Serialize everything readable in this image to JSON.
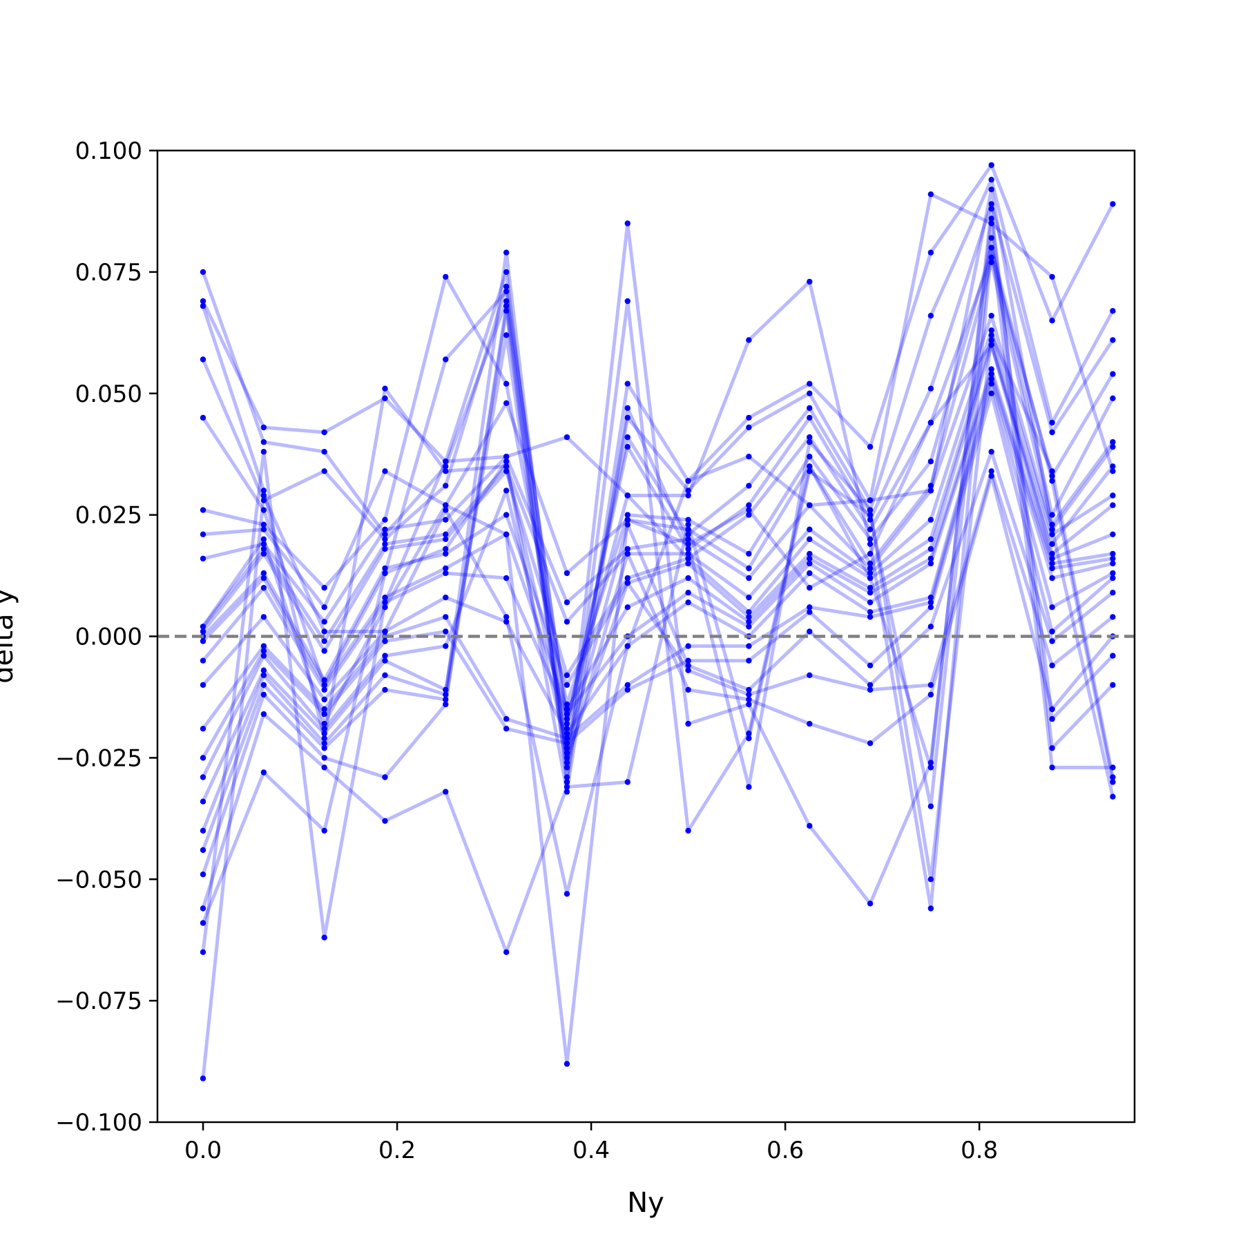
{
  "chart_data": {
    "type": "line",
    "xlabel": "Ny",
    "ylabel": "delta y",
    "xlim": [
      -0.047,
      0.96
    ],
    "ylim": [
      -0.1,
      0.1
    ],
    "grid": false,
    "line_color": "#0000ff",
    "line_opacity": 0.27,
    "reference_line": {
      "y": 0.0,
      "color": "#808080",
      "style": "dashed"
    },
    "x": [
      0.0,
      0.0625,
      0.125,
      0.1875,
      0.25,
      0.3125,
      0.375,
      0.4375,
      0.5,
      0.5625,
      0.625,
      0.6875,
      0.75,
      0.8125,
      0.875,
      0.9375
    ],
    "x_tick_labels": [
      "0.0",
      "0.2",
      "0.4",
      "0.6",
      "0.8"
    ],
    "x_ticks": [
      0.0,
      0.2,
      0.4,
      0.6,
      0.8
    ],
    "y_tick_labels": [
      "0.100",
      "0.075",
      "0.050",
      "0.025",
      "0.000",
      "−0.025",
      "−0.050",
      "−0.075",
      "−0.100"
    ],
    "y_ticks": [
      0.1,
      0.075,
      0.05,
      0.025,
      0.0,
      -0.025,
      -0.05,
      -0.075,
      -0.1
    ],
    "series": [
      {
        "values": [
          0.075,
          0.04,
          0.038,
          0.021,
          0.035,
          0.069,
          -0.024,
          0.045,
          0.03,
          0.043,
          0.05,
          0.028,
          0.091,
          0.085,
          0.074,
          0.034
        ]
      },
      {
        "values": [
          0.069,
          0.043,
          0.042,
          0.049,
          0.036,
          0.075,
          -0.03,
          0.052,
          0.032,
          0.045,
          0.052,
          0.039,
          0.079,
          0.097,
          0.065,
          0.089
        ]
      },
      {
        "values": [
          0.068,
          0.03,
          -0.021,
          0.051,
          0.034,
          0.035,
          -0.019,
          0.041,
          0.021,
          0.031,
          0.047,
          0.026,
          0.066,
          0.094,
          0.044,
          0.067
        ]
      },
      {
        "values": [
          0.057,
          0.028,
          0.034,
          0.02,
          0.031,
          0.072,
          -0.018,
          0.039,
          0.018,
          0.027,
          0.045,
          0.024,
          0.051,
          0.089,
          0.042,
          0.061
        ]
      },
      {
        "values": [
          0.045,
          0.026,
          -0.01,
          0.013,
          0.057,
          0.071,
          -0.017,
          0.029,
          0.016,
          0.025,
          0.041,
          0.022,
          0.044,
          0.078,
          0.033,
          0.054
        ]
      },
      {
        "values": [
          0.026,
          0.023,
          0.01,
          0.024,
          0.074,
          0.052,
          -0.014,
          0.025,
          0.024,
          0.017,
          0.037,
          0.02,
          0.036,
          0.08,
          0.025,
          0.049
        ]
      },
      {
        "values": [
          0.021,
          0.022,
          0.006,
          0.034,
          0.027,
          0.048,
          0.013,
          0.024,
          0.022,
          0.014,
          0.035,
          0.015,
          0.031,
          0.077,
          0.023,
          0.04
        ]
      },
      {
        "values": [
          0.016,
          0.019,
          0.003,
          0.022,
          0.024,
          0.037,
          0.007,
          0.018,
          0.02,
          0.012,
          0.027,
          0.014,
          0.03,
          0.066,
          0.022,
          0.039
        ]
      },
      {
        "values": [
          0.002,
          0.018,
          -0.001,
          0.019,
          0.021,
          0.035,
          0.003,
          0.017,
          0.017,
          0.008,
          0.022,
          0.013,
          0.024,
          0.063,
          0.021,
          0.029
        ]
      },
      {
        "values": [
          0.001,
          0.017,
          -0.003,
          0.018,
          0.02,
          0.034,
          -0.008,
          0.012,
          0.016,
          0.005,
          0.02,
          0.012,
          0.02,
          0.061,
          0.017,
          0.027
        ]
      },
      {
        "values": [
          0.0,
          0.013,
          -0.009,
          0.014,
          0.017,
          0.025,
          -0.01,
          0.011,
          0.015,
          0.004,
          0.017,
          0.01,
          0.018,
          0.06,
          0.016,
          0.021
        ]
      },
      {
        "values": [
          -0.001,
          0.012,
          -0.01,
          0.008,
          0.014,
          0.021,
          -0.015,
          0.006,
          0.012,
          0.003,
          0.016,
          0.009,
          0.016,
          0.055,
          0.015,
          0.017
        ]
      },
      {
        "values": [
          -0.005,
          0.01,
          -0.011,
          0.007,
          0.013,
          0.012,
          -0.016,
          0.0,
          0.009,
          0.002,
          0.015,
          0.007,
          0.015,
          0.054,
          0.014,
          0.016
        ]
      },
      {
        "values": [
          -0.01,
          0.004,
          -0.013,
          0.001,
          0.008,
          0.003,
          -0.02,
          -0.002,
          0.007,
          0.0,
          0.013,
          0.005,
          0.008,
          0.053,
          0.012,
          0.015
        ]
      },
      {
        "values": [
          -0.019,
          -0.002,
          -0.015,
          0.0,
          0.004,
          -0.017,
          -0.021,
          -0.01,
          -0.002,
          -0.002,
          0.006,
          0.004,
          0.007,
          0.052,
          0.006,
          0.013
        ]
      },
      {
        "values": [
          -0.025,
          -0.003,
          -0.016,
          -0.001,
          0.001,
          -0.019,
          -0.022,
          -0.011,
          -0.005,
          -0.005,
          0.005,
          -0.006,
          0.006,
          0.05,
          0.001,
          0.012
        ]
      },
      {
        "values": [
          -0.029,
          -0.004,
          -0.019,
          -0.004,
          -0.002,
          0.03,
          -0.023,
          0.023,
          -0.006,
          -0.011,
          0.001,
          -0.01,
          0.002,
          0.038,
          -0.001,
          0.009
        ]
      },
      {
        "values": [
          -0.034,
          -0.007,
          -0.02,
          -0.005,
          -0.011,
          0.062,
          -0.025,
          0.011,
          -0.007,
          -0.012,
          -0.008,
          -0.011,
          -0.01,
          0.034,
          -0.006,
          0.004
        ]
      },
      {
        "values": [
          -0.04,
          -0.008,
          -0.022,
          -0.008,
          -0.012,
          0.079,
          -0.026,
          0.017,
          -0.011,
          -0.013,
          -0.018,
          -0.022,
          -0.012,
          0.033,
          -0.015,
          0.0
        ]
      },
      {
        "values": [
          -0.044,
          -0.01,
          -0.023,
          -0.011,
          -0.013,
          0.068,
          -0.027,
          0.085,
          -0.018,
          -0.014,
          -0.039,
          -0.055,
          -0.026,
          0.086,
          -0.017,
          -0.004
        ]
      },
      {
        "values": [
          -0.049,
          -0.012,
          -0.025,
          -0.029,
          -0.014,
          0.067,
          -0.029,
          0.069,
          -0.04,
          -0.02,
          0.035,
          0.012,
          -0.027,
          0.088,
          -0.023,
          -0.01
        ]
      },
      {
        "values": [
          -0.056,
          -0.016,
          -0.027,
          -0.038,
          -0.032,
          -0.065,
          -0.031,
          -0.03,
          0.023,
          -0.021,
          0.034,
          0.025,
          -0.035,
          0.082,
          -0.027,
          -0.027
        ]
      },
      {
        "values": [
          -0.059,
          -0.028,
          -0.04,
          0.013,
          0.018,
          0.036,
          -0.032,
          0.047,
          0.019,
          -0.031,
          0.04,
          0.026,
          -0.05,
          0.062,
          0.034,
          -0.029
        ]
      },
      {
        "values": [
          -0.065,
          0.038,
          -0.062,
          0.007,
          0.036,
          0.037,
          0.041,
          0.029,
          0.029,
          0.061,
          0.073,
          0.019,
          -0.056,
          0.08,
          0.032,
          -0.03
        ]
      },
      {
        "values": [
          -0.091,
          0.029,
          0.001,
          0.001,
          0.026,
          0.004,
          -0.053,
          -0.002,
          0.032,
          0.037,
          0.027,
          0.028,
          0.03,
          0.092,
          0.022,
          -0.033
        ]
      },
      {
        "values": [
          0.002,
          0.02,
          -0.018,
          0.006,
          0.027,
          0.021,
          -0.088,
          0.024,
          0.019,
          0.026,
          0.01,
          0.017,
          0.044,
          0.06,
          0.019,
          0.035
        ]
      }
    ]
  }
}
